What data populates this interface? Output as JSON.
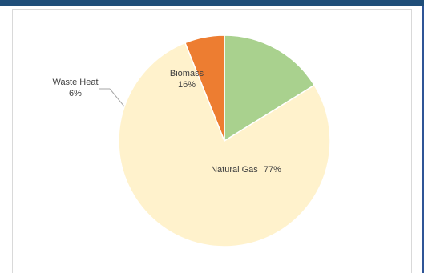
{
  "chart_data": {
    "type": "pie",
    "slices": [
      {
        "name": "Biomass",
        "value": 16,
        "value_label": "16%",
        "color": "#a9d18e"
      },
      {
        "name": "Natural Gas",
        "value": 77,
        "value_label": "77%",
        "color": "#fff2cc"
      },
      {
        "name": "Waste Heat",
        "value": 6,
        "value_label": "6%",
        "color": "#ed7d31"
      }
    ],
    "start_angle_deg": 0,
    "direction": "clockwise",
    "legend": "none",
    "leader_line": "Waste Heat"
  },
  "colors": {
    "header_band": "#1f4e79",
    "frame_border": "#d9d9d9",
    "slice_border": "#ffffff",
    "label_text": "#404040",
    "leader_line": "#a6a6a6"
  }
}
